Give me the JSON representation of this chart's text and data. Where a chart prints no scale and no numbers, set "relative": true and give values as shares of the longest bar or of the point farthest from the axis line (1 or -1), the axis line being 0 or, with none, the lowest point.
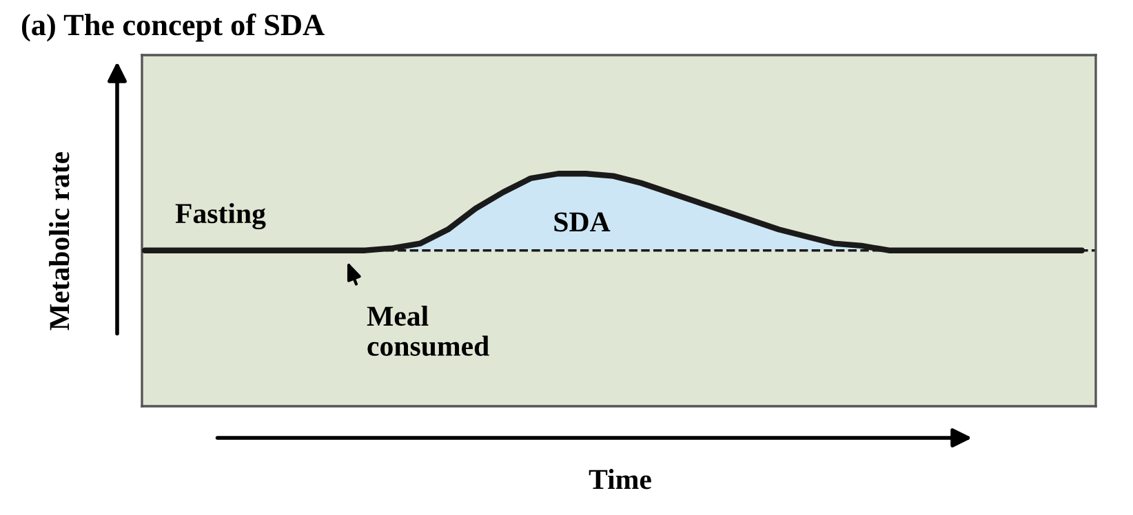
{
  "chart_data": {
    "type": "line",
    "title": "(a) The concept of SDA",
    "xlabel": "Time",
    "ylabel": "Metabolic rate",
    "relative": true,
    "categories": [
      null,
      null,
      null,
      null,
      null,
      null,
      null,
      null,
      null,
      null,
      null,
      null,
      null,
      null,
      null,
      null,
      null,
      null,
      null,
      null,
      null,
      null,
      null,
      null,
      null,
      null,
      null,
      null,
      null,
      null,
      null,
      null,
      null,
      null,
      null
    ],
    "series": [
      {
        "color": "#1a1a1a",
        "values": [
          0.67,
          0.67,
          0.67,
          0.67,
          0.67,
          0.67,
          0.67,
          0.67,
          0.67,
          0.68,
          0.7,
          0.76,
          0.85,
          0.92,
          0.98,
          1,
          1,
          0.99,
          0.96,
          0.92,
          0.88,
          0.84,
          0.8,
          0.76,
          0.73,
          0.7,
          0.69,
          0.67,
          0.67,
          0.67,
          0.67,
          0.67,
          0.67,
          0.67,
          0.67
        ],
        "lower": [
          0.67,
          0.67,
          0.67,
          0.67,
          0.67,
          0.67,
          0.67,
          0.67,
          0.67,
          0.67,
          0.67,
          0.67,
          0.67,
          0.67,
          0.67,
          0.67,
          0.67,
          0.67,
          0.67,
          0.67,
          0.67,
          0.67,
          0.67,
          0.67,
          0.67,
          0.67,
          0.67,
          0.67,
          0.67,
          0.67,
          0.67,
          0.67,
          0.67,
          0.67,
          0.67
        ],
        "upper": [
          0.67,
          0.67,
          0.67,
          0.67,
          0.67,
          0.67,
          0.67,
          0.67,
          0.67,
          0.68,
          0.7,
          0.76,
          0.85,
          0.92,
          0.98,
          1,
          1,
          0.99,
          0.96,
          0.92,
          0.88,
          0.84,
          0.8,
          0.76,
          0.73,
          0.7,
          0.69,
          0.67,
          0.67,
          0.67,
          0.67,
          0.67,
          0.67,
          0.67,
          0.67
        ]
      }
    ],
    "ref_lines": [
      {
        "axis": "y",
        "value": 0.67,
        "line_style": "dashed",
        "color": "#1a1a1a"
      }
    ],
    "annotations": [
      "Fasting",
      "SDA",
      "Meal\nconsumed"
    ],
    "legend": false,
    "marker": "none",
    "line_style": "solid"
  }
}
